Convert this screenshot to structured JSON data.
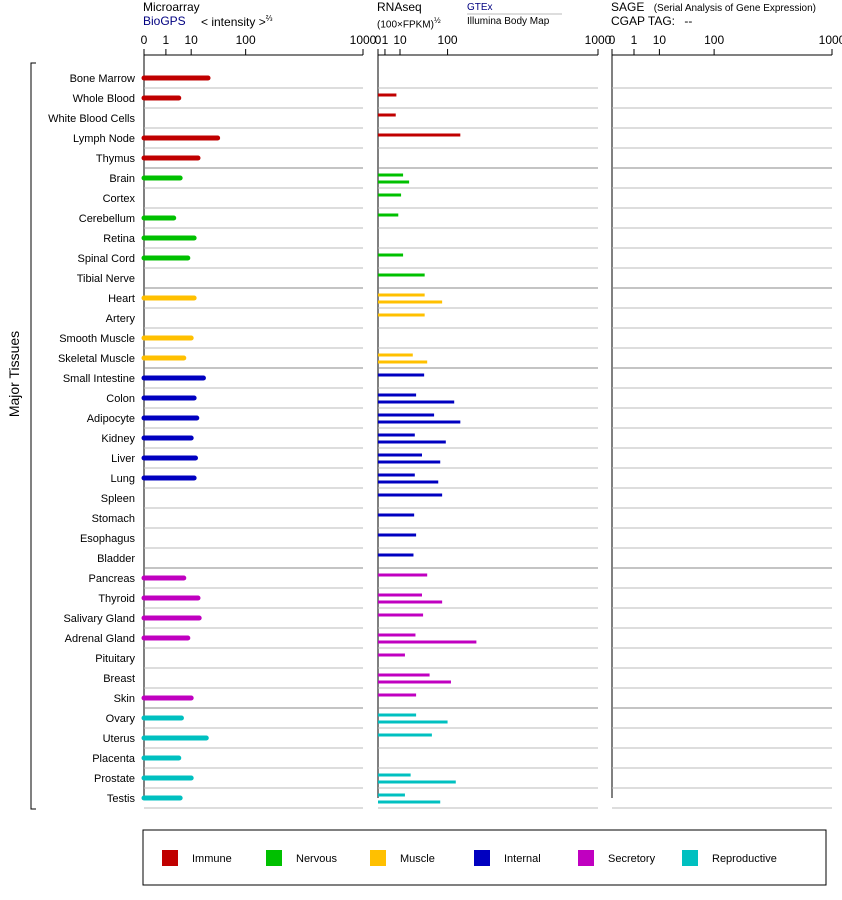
{
  "headers": {
    "microarray": "Microarray",
    "biogps": "BioGPS",
    "intensity": "< intensity >",
    "intensity_exp": "⅔",
    "rnaseq": "RNAseq",
    "fpkm": "(100×FPKM)",
    "fpkm_exp": "½",
    "gtex": "GTEx",
    "illumina": "Illumina Body Map",
    "sage": "SAGE",
    "sage_full": "(Serial Analysis of Gene Expression)",
    "cgap": "CGAP TAG:",
    "cgap_value": "--"
  },
  "y_axis_label": "Major Tissues",
  "legend": [
    {
      "label": "Immune",
      "color": "#c00000"
    },
    {
      "label": "Nervous",
      "color": "#00c000"
    },
    {
      "label": "Muscle",
      "color": "#ffc000"
    },
    {
      "label": "Internal",
      "color": "#0000c0"
    },
    {
      "label": "Secretory",
      "color": "#c000c0"
    },
    {
      "label": "Reproductive",
      "color": "#00c0c0"
    }
  ],
  "chart_data": [
    {
      "type": "bar",
      "panel": "Microarray",
      "x_scale": "cube-root (intensity^(2/3) tick labels)",
      "ticks": [
        "0",
        "1",
        "10",
        "100",
        "1000"
      ],
      "tick_values": [
        0,
        1,
        10,
        100,
        1000
      ],
      "xlim": [
        0,
        1000
      ],
      "categories": [
        "Bone Marrow",
        "Whole Blood",
        "White Blood Cells",
        "Lymph Node",
        "Thymus",
        "Brain",
        "Cortex",
        "Cerebellum",
        "Retina",
        "Spinal Cord",
        "Tibial Nerve",
        "Heart",
        "Artery",
        "Smooth Muscle",
        "Skeletal Muscle",
        "Small Intestine",
        "Colon",
        "Adipocyte",
        "Kidney",
        "Liver",
        "Lung",
        "Spleen",
        "Stomach",
        "Esophagus",
        "Bladder",
        "Pancreas",
        "Thyroid",
        "Salivary Gland",
        "Adrenal Gland",
        "Pituitary",
        "Breast",
        "Skin",
        "Ovary",
        "Uterus",
        "Placenta",
        "Prostate",
        "Testis"
      ],
      "groups": [
        "immune",
        "immune",
        "immune",
        "immune",
        "immune",
        "nervous",
        "nervous",
        "nervous",
        "nervous",
        "nervous",
        "nervous",
        "muscle",
        "muscle",
        "muscle",
        "muscle",
        "internal",
        "internal",
        "internal",
        "internal",
        "internal",
        "internal",
        "internal",
        "internal",
        "internal",
        "internal",
        "secretory",
        "secretory",
        "secretory",
        "secretory",
        "secretory",
        "secretory",
        "secretory",
        "reproductive",
        "reproductive",
        "reproductive",
        "reproductive",
        "reproductive"
      ],
      "series": [
        {
          "values": [
            25,
            4,
            null,
            38,
            15,
            4.5,
            null,
            2.5,
            12,
            8,
            null,
            12,
            null,
            10,
            6,
            20,
            12,
            14,
            10,
            13,
            12,
            null,
            null,
            null,
            null,
            6,
            15,
            16,
            8,
            null,
            null,
            10,
            5,
            23,
            4,
            10,
            4.5
          ]
        }
      ]
    },
    {
      "type": "bar",
      "panel": "RNAseq",
      "x_scale": "square-root (FPKM^(1/2) tick labels)",
      "ticks": [
        "0",
        "1",
        "10",
        "100",
        "1000"
      ],
      "tick_values": [
        0,
        1,
        10,
        100,
        1000
      ],
      "xlim": [
        0,
        1000
      ],
      "categories": [
        "Bone Marrow",
        "Whole Blood",
        "White Blood Cells",
        "Lymph Node",
        "Thymus",
        "Brain",
        "Cortex",
        "Cerebellum",
        "Retina",
        "Spinal Cord",
        "Tibial Nerve",
        "Heart",
        "Artery",
        "Smooth Muscle",
        "Skeletal Muscle",
        "Small Intestine",
        "Colon",
        "Adipocyte",
        "Kidney",
        "Liver",
        "Lung",
        "Spleen",
        "Stomach",
        "Esophagus",
        "Bladder",
        "Pancreas",
        "Thyroid",
        "Salivary Gland",
        "Adrenal Gland",
        "Pituitary",
        "Breast",
        "Skin",
        "Ovary",
        "Uterus",
        "Placenta",
        "Prostate",
        "Testis"
      ],
      "series": [
        {
          "name": "GTEx",
          "values": [
            null,
            7,
            6.5,
            140,
            null,
            13,
            11,
            8.5,
            null,
            13,
            45,
            45,
            45,
            null,
            25,
            44,
            30,
            65,
            28,
            40,
            28,
            85,
            27,
            30,
            26,
            50,
            40,
            42,
            29,
            15,
            55,
            30,
            30,
            60,
            null,
            22,
            15
          ]
        },
        {
          "name": "Illumina Body Map",
          "values": [
            null,
            null,
            null,
            null,
            null,
            20,
            null,
            null,
            null,
            null,
            null,
            85,
            null,
            null,
            50,
            null,
            120,
            140,
            95,
            80,
            75,
            null,
            null,
            null,
            null,
            null,
            85,
            null,
            200,
            null,
            110,
            null,
            100,
            null,
            null,
            125,
            80
          ]
        }
      ]
    },
    {
      "type": "bar",
      "panel": "SAGE",
      "ticks": [
        "0",
        "1",
        "10",
        "100",
        "1000"
      ],
      "tick_values": [
        0,
        1,
        10,
        100,
        1000
      ],
      "xlim": [
        0,
        1000
      ],
      "categories": [],
      "series": []
    }
  ]
}
